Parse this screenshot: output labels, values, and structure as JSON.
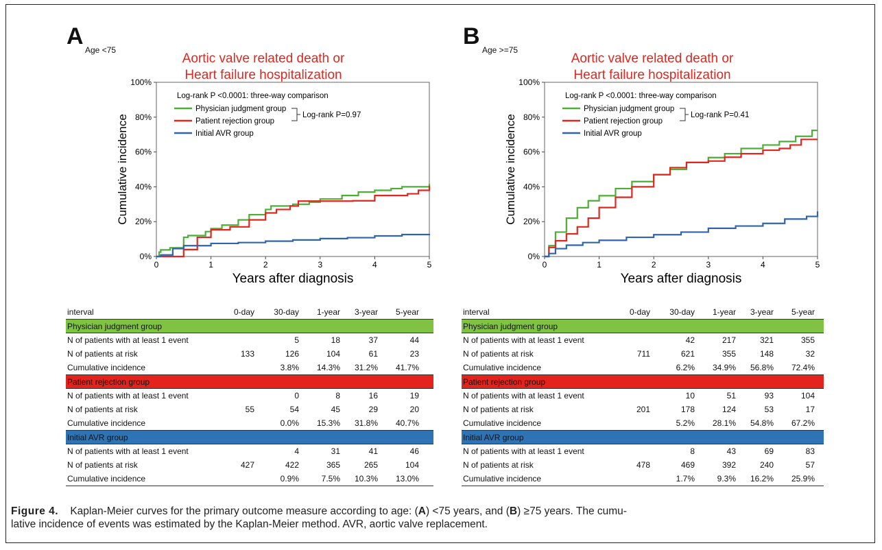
{
  "colors": {
    "green": "#4caf35",
    "red": "#e0261e",
    "blue": "#2f63b1",
    "green_band": "#80c342",
    "red_band": "#e4231c",
    "blue_band": "#2e74b5"
  },
  "panels": [
    {
      "letter": "A",
      "age_label": "Age <75",
      "title_line1": "Aortic valve related death or",
      "title_line2": "Heart failure hospitalization",
      "logrank_all": "Log-rank P <0.0001: three-way comparison",
      "logrank_pair": "Log-rank P=0.97",
      "legend": [
        "Physician judgment group",
        "Patient rejection group",
        "Initial AVR group"
      ],
      "ylabel": "Cumulative incidence",
      "xlabel": "Years after diagnosis",
      "yticks": [
        "0%",
        "20%",
        "40%",
        "60%",
        "80%",
        "100%"
      ],
      "xticks": [
        "0",
        "1",
        "2",
        "3",
        "4",
        "5"
      ],
      "table": {
        "headers": [
          "interval",
          "0-day",
          "30-day",
          "1-year",
          "3-year",
          "5-year"
        ],
        "groups": [
          {
            "name": "Physician judgment group",
            "rows": [
              {
                "label": "N of patients with at least 1 event",
                "values": [
                  "",
                  "5",
                  "18",
                  "37",
                  "44"
                ]
              },
              {
                "label": "N of patients at risk",
                "values": [
                  "133",
                  "126",
                  "104",
                  "61",
                  "23"
                ]
              },
              {
                "label": "Cumulative incidence",
                "values": [
                  "",
                  "3.8%",
                  "14.3%",
                  "31.2%",
                  "41.7%"
                ]
              }
            ]
          },
          {
            "name": "Patient rejection group",
            "rows": [
              {
                "label": "N of patients with at least 1 event",
                "values": [
                  "",
                  "0",
                  "8",
                  "16",
                  "19"
                ]
              },
              {
                "label": "N of patients at risk",
                "values": [
                  "55",
                  "54",
                  "45",
                  "29",
                  "20"
                ]
              },
              {
                "label": "Cumulative incidence",
                "values": [
                  "",
                  "0.0%",
                  "15.3%",
                  "31.8%",
                  "40.7%"
                ]
              }
            ]
          },
          {
            "name": "Initial AVR group",
            "rows": [
              {
                "label": "N of patients with at least 1 event",
                "values": [
                  "",
                  "4",
                  "31",
                  "41",
                  "46"
                ]
              },
              {
                "label": "N of patients at risk",
                "values": [
                  "427",
                  "422",
                  "365",
                  "265",
                  "104"
                ]
              },
              {
                "label": "Cumulative incidence",
                "values": [
                  "",
                  "0.9%",
                  "7.5%",
                  "10.3%",
                  "13.0%"
                ]
              }
            ]
          }
        ]
      }
    },
    {
      "letter": "B",
      "age_label": "Age >=75",
      "title_line1": "Aortic valve related death or",
      "title_line2": "Heart failure hospitalization",
      "logrank_all": "Log-rank P <0.0001: three-way comparison",
      "logrank_pair": "Log-rank P=0.41",
      "legend": [
        "Physician judgment group",
        "Patient rejection group",
        "Initial AVR group"
      ],
      "ylabel": "Cumulative incidence",
      "xlabel": "Years after diagnosis",
      "yticks": [
        "0%",
        "20%",
        "40%",
        "60%",
        "80%",
        "100%"
      ],
      "xticks": [
        "0",
        "1",
        "2",
        "3",
        "4",
        "5"
      ],
      "table": {
        "headers": [
          "interval",
          "0-day",
          "30-day",
          "1-year",
          "3-year",
          "5-year"
        ],
        "groups": [
          {
            "name": "Physician judgment group",
            "rows": [
              {
                "label": "N of patients with at least 1 event",
                "values": [
                  "",
                  "42",
                  "217",
                  "321",
                  "355"
                ]
              },
              {
                "label": "N of patients at risk",
                "values": [
                  "711",
                  "621",
                  "355",
                  "148",
                  "32"
                ]
              },
              {
                "label": "Cumulative incidence",
                "values": [
                  "",
                  "6.2%",
                  "34.9%",
                  "56.8%",
                  "72.4%"
                ]
              }
            ]
          },
          {
            "name": "Patient rejection group",
            "rows": [
              {
                "label": "N of patients with at least 1 event",
                "values": [
                  "",
                  "10",
                  "51",
                  "93",
                  "104"
                ]
              },
              {
                "label": "N of patients at risk",
                "values": [
                  "201",
                  "178",
                  "124",
                  "53",
                  "17"
                ]
              },
              {
                "label": "Cumulative incidence",
                "values": [
                  "",
                  "5.2%",
                  "28.1%",
                  "54.8%",
                  "67.2%"
                ]
              }
            ]
          },
          {
            "name": "Initial AVR group",
            "rows": [
              {
                "label": "N of patients with at least 1 event",
                "values": [
                  "",
                  "8",
                  "43",
                  "69",
                  "83"
                ]
              },
              {
                "label": "N of patients at risk",
                "values": [
                  "478",
                  "469",
                  "392",
                  "240",
                  "57"
                ]
              },
              {
                "label": "Cumulative incidence",
                "values": [
                  "",
                  "1.7%",
                  "9.3%",
                  "16.2%",
                  "25.9%"
                ]
              }
            ]
          }
        ]
      }
    }
  ],
  "chart_data": [
    {
      "type": "line",
      "title": "Aortic valve related death or Heart failure hospitalization",
      "xlabel": "Years after diagnosis",
      "ylabel": "Cumulative incidence",
      "xlim": [
        0,
        5
      ],
      "ylim": [
        0,
        100
      ],
      "series": [
        {
          "name": "Physician judgment group",
          "x": [
            0,
            0.05,
            0.08,
            0.25,
            0.5,
            0.58,
            0.9,
            1.0,
            1.2,
            1.5,
            1.7,
            2.0,
            2.1,
            2.5,
            2.8,
            3.0,
            3.4,
            3.7,
            4.0,
            4.3,
            4.5,
            5.0
          ],
          "y": [
            0,
            2.5,
            3.8,
            5,
            11,
            12,
            14.3,
            16,
            18,
            21,
            24,
            27,
            29,
            30,
            31.2,
            33,
            35,
            37,
            38,
            39,
            40,
            41.7
          ]
        },
        {
          "name": "Patient rejection group",
          "x": [
            0,
            0.08,
            0.5,
            0.68,
            0.75,
            1.0,
            1.35,
            1.7,
            2.0,
            2.2,
            2.45,
            2.6,
            3.0,
            3.6,
            4.0,
            4.4,
            4.6,
            4.8,
            5.0
          ],
          "y": [
            0,
            0,
            4,
            4,
            11,
            15.3,
            17,
            21,
            25,
            27,
            29,
            31.8,
            31.8,
            32,
            35,
            35,
            36,
            38,
            40.7
          ]
        },
        {
          "name": "Initial AVR group",
          "x": [
            0,
            0.08,
            0.3,
            0.5,
            1.0,
            1.5,
            2.0,
            2.5,
            3.0,
            3.5,
            4.0,
            4.5,
            5.0
          ],
          "y": [
            0,
            0.9,
            4.5,
            6.2,
            7.5,
            8,
            8.8,
            9.5,
            10.3,
            10.8,
            11.8,
            12.6,
            13.0
          ]
        }
      ]
    },
    {
      "type": "line",
      "title": "Aortic valve related death or Heart failure hospitalization",
      "xlabel": "Years after diagnosis",
      "ylabel": "Cumulative incidence",
      "xlim": [
        0,
        5
      ],
      "ylim": [
        0,
        100
      ],
      "series": [
        {
          "name": "Physician judgment group",
          "x": [
            0,
            0.08,
            0.2,
            0.4,
            0.6,
            0.8,
            1.0,
            1.3,
            1.6,
            2.0,
            2.3,
            2.6,
            3.0,
            3.3,
            3.6,
            4.0,
            4.3,
            4.6,
            4.9,
            5.0
          ],
          "y": [
            0,
            6.2,
            14,
            22,
            28,
            32,
            34.9,
            39,
            43,
            47,
            50,
            54,
            56.8,
            59,
            62,
            64,
            66,
            69,
            72.4,
            72.4
          ]
        },
        {
          "name": "Patient rejection group",
          "x": [
            0,
            0.08,
            0.2,
            0.4,
            0.6,
            0.8,
            1.0,
            1.3,
            1.6,
            2.0,
            2.3,
            2.6,
            3.0,
            3.3,
            3.6,
            4.0,
            4.3,
            4.5,
            4.7,
            5.0
          ],
          "y": [
            0,
            5.2,
            9,
            13,
            17,
            22,
            28.1,
            34,
            40,
            47,
            51,
            54,
            54.8,
            57,
            59,
            61,
            62,
            64,
            67.2,
            67.2
          ]
        },
        {
          "name": "Initial AVR group",
          "x": [
            0,
            0.08,
            0.2,
            0.4,
            0.7,
            1.0,
            1.5,
            2.0,
            2.5,
            3.0,
            3.5,
            4.0,
            4.4,
            4.8,
            5.0
          ],
          "y": [
            0,
            1.7,
            4.5,
            6.5,
            8,
            9.3,
            11,
            12.5,
            14,
            16.2,
            17.5,
            19,
            21.5,
            23,
            25.9
          ]
        }
      ]
    }
  ],
  "caption": {
    "fig_label": "Figure 4.",
    "text_1": "Kaplan-Meier curves for the primary outcome measure according to age: (",
    "a": "A",
    "text_2": ") <75 years, and (",
    "b": "B",
    "text_3": ") ≥75 years. The cumu-",
    "line2": "lative incidence of events was estimated by the Kaplan-Meier method. AVR, aortic valve replacement."
  }
}
